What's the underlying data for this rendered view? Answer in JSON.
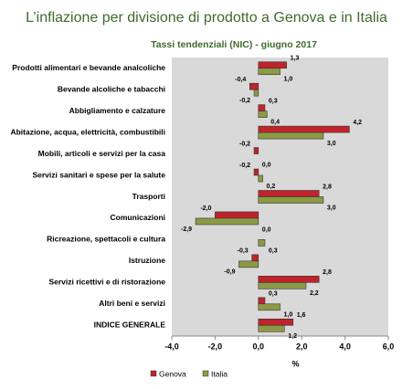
{
  "chart_data": {
    "type": "hbar",
    "title": "L’inflazione per divisione di prodotto a Genova e in Italia",
    "subtitle": "Tassi tendenziali (NIC) - giugno 2017",
    "categories": [
      "Prodotti alimentari e bevande analcoliche",
      "Bevande alcoliche e tabacchi",
      "Abbigliamento e calzature",
      "Abitazione, acqua, elettricità, combustibili",
      "Mobili, articoli e servizi per la casa",
      "Servizi sanitari e spese per la salute",
      "Trasporti",
      "Comunicazioni",
      "Ricreazione, spettacoli e cultura",
      "Istruzione",
      "Servizi ricettivi e di ristorazione",
      "Altri beni e servizi",
      "INDICE GENERALE"
    ],
    "series": [
      {
        "name": "Genova",
        "color": "#c0232b",
        "values": [
          1.3,
          -0.4,
          0.3,
          4.2,
          -0.2,
          -0.2,
          2.8,
          -2.0,
          0.0,
          -0.3,
          2.8,
          0.3,
          1.6
        ],
        "value_labels": [
          "1,3",
          "-0,4",
          "0,3",
          "4,2",
          "-0,2",
          "-0,2",
          "2,8",
          "-2,0",
          "0,0",
          "-0,3",
          "2,8",
          "0,3",
          "1,6"
        ]
      },
      {
        "name": "Italia",
        "color": "#8c9a45",
        "values": [
          1.0,
          -0.2,
          0.4,
          3.0,
          0.0,
          0.2,
          3.0,
          -2.9,
          0.3,
          -0.9,
          2.2,
          1.0,
          1.2
        ],
        "value_labels": [
          "1,0",
          "-0,2",
          "0,4",
          "3,0",
          "0,0",
          "0,2",
          "3,0",
          "-2,9",
          "0,3",
          "-0,9",
          "2,2",
          "1,0",
          "1,2"
        ]
      }
    ],
    "xlim": [
      -4,
      6
    ],
    "xticks": [
      {
        "value": -4,
        "label": "-4,0"
      },
      {
        "value": -2,
        "label": "-2,0"
      },
      {
        "value": 0,
        "label": "0,0"
      },
      {
        "value": 2,
        "label": "2,0"
      },
      {
        "value": 4,
        "label": "4,0"
      },
      {
        "value": 6,
        "label": "6,0"
      }
    ],
    "xlabel": "%",
    "grid": false,
    "legend": "bottom"
  }
}
